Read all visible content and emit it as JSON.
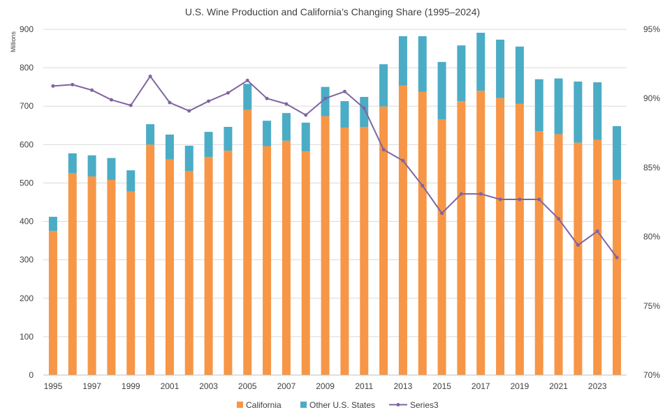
{
  "chart_data": {
    "type": "bar",
    "stacked": true,
    "title": "U.S. Wine Production and California’s Changing Share (1995–2024)",
    "ylabel_units": "Millions",
    "ylim": [
      0,
      900
    ],
    "yticks": [
      "0",
      "100",
      "200",
      "300",
      "400",
      "500",
      "600",
      "700",
      "800",
      "900"
    ],
    "y2lim": [
      0.7,
      0.95
    ],
    "y2ticks": [
      "70%",
      "75%",
      "80%",
      "85%",
      "90%",
      "95%"
    ],
    "categories": [
      1995,
      1996,
      1997,
      1998,
      1999,
      2000,
      2001,
      2002,
      2003,
      2004,
      2005,
      2006,
      2007,
      2008,
      2009,
      2010,
      2011,
      2012,
      2013,
      2014,
      2015,
      2016,
      2017,
      2018,
      2019,
      2020,
      2021,
      2022,
      2023,
      2024
    ],
    "xtick_labels": [
      "1995",
      "1997",
      "1999",
      "2001",
      "2003",
      "2005",
      "2007",
      "2009",
      "2011",
      "2013",
      "2015",
      "2017",
      "2019",
      "2021",
      "2023"
    ],
    "series": [
      {
        "name": "California",
        "color": "#F79646",
        "axis": "left",
        "values": [
          375,
          525,
          517,
          508,
          478,
          600,
          561,
          531,
          568,
          584,
          690,
          596,
          610,
          582,
          674,
          644,
          646,
          699,
          754,
          737,
          666,
          713,
          740,
          721,
          706,
          635,
          627,
          605,
          612,
          508
        ]
      },
      {
        "name": "Other U.S. States",
        "color": "#4BACC6",
        "axis": "left",
        "values": [
          37,
          52,
          55,
          57,
          55,
          53,
          65,
          66,
          65,
          62,
          68,
          66,
          72,
          75,
          76,
          69,
          78,
          110,
          128,
          145,
          149,
          145,
          151,
          152,
          149,
          135,
          145,
          159,
          150,
          140
        ]
      },
      {
        "name": "Series3",
        "type": "line",
        "color": "#8064A2",
        "axis": "right",
        "values": [
          0.909,
          0.91,
          0.906,
          0.899,
          0.895,
          0.916,
          0.897,
          0.891,
          0.898,
          0.904,
          0.913,
          0.9,
          0.896,
          0.888,
          0.9,
          0.905,
          0.893,
          0.863,
          0.855,
          0.837,
          0.817,
          0.831,
          0.831,
          0.827,
          0.827,
          0.827,
          0.813,
          0.794,
          0.804,
          0.785
        ]
      }
    ],
    "legend_position": "bottom",
    "grid": true
  }
}
